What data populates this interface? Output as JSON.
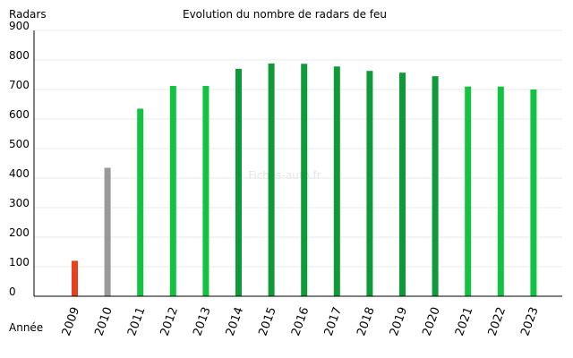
{
  "chart_data": {
    "type": "bar",
    "title": "Evolution du nombre de radars de feu",
    "ylabel": "Radars",
    "xlabel": "Année",
    "watermark": "Fiches-auto.fr",
    "ylim": [
      0,
      900
    ],
    "yticks": [
      0,
      100,
      200,
      300,
      400,
      500,
      600,
      700,
      800,
      900
    ],
    "grid": true,
    "categories": [
      "2009",
      "2010",
      "2011",
      "2012",
      "2013",
      "2014",
      "2015",
      "2016",
      "2017",
      "2018",
      "2019",
      "2020",
      "2021",
      "2022",
      "2023"
    ],
    "values": [
      120,
      435,
      635,
      712,
      712,
      770,
      788,
      787,
      778,
      763,
      757,
      745,
      710,
      710,
      700
    ],
    "colors": [
      "#e8401c",
      "#999999",
      "#12c241",
      "#12c241",
      "#12c241",
      "#0e9a38",
      "#0e9a38",
      "#0e9a38",
      "#0e9a38",
      "#0e9a38",
      "#0e9a38",
      "#0e9a38",
      "#12c241",
      "#12c241",
      "#12c241"
    ],
    "axis_color": "#000000",
    "grid_color": "#e8e8e8"
  }
}
